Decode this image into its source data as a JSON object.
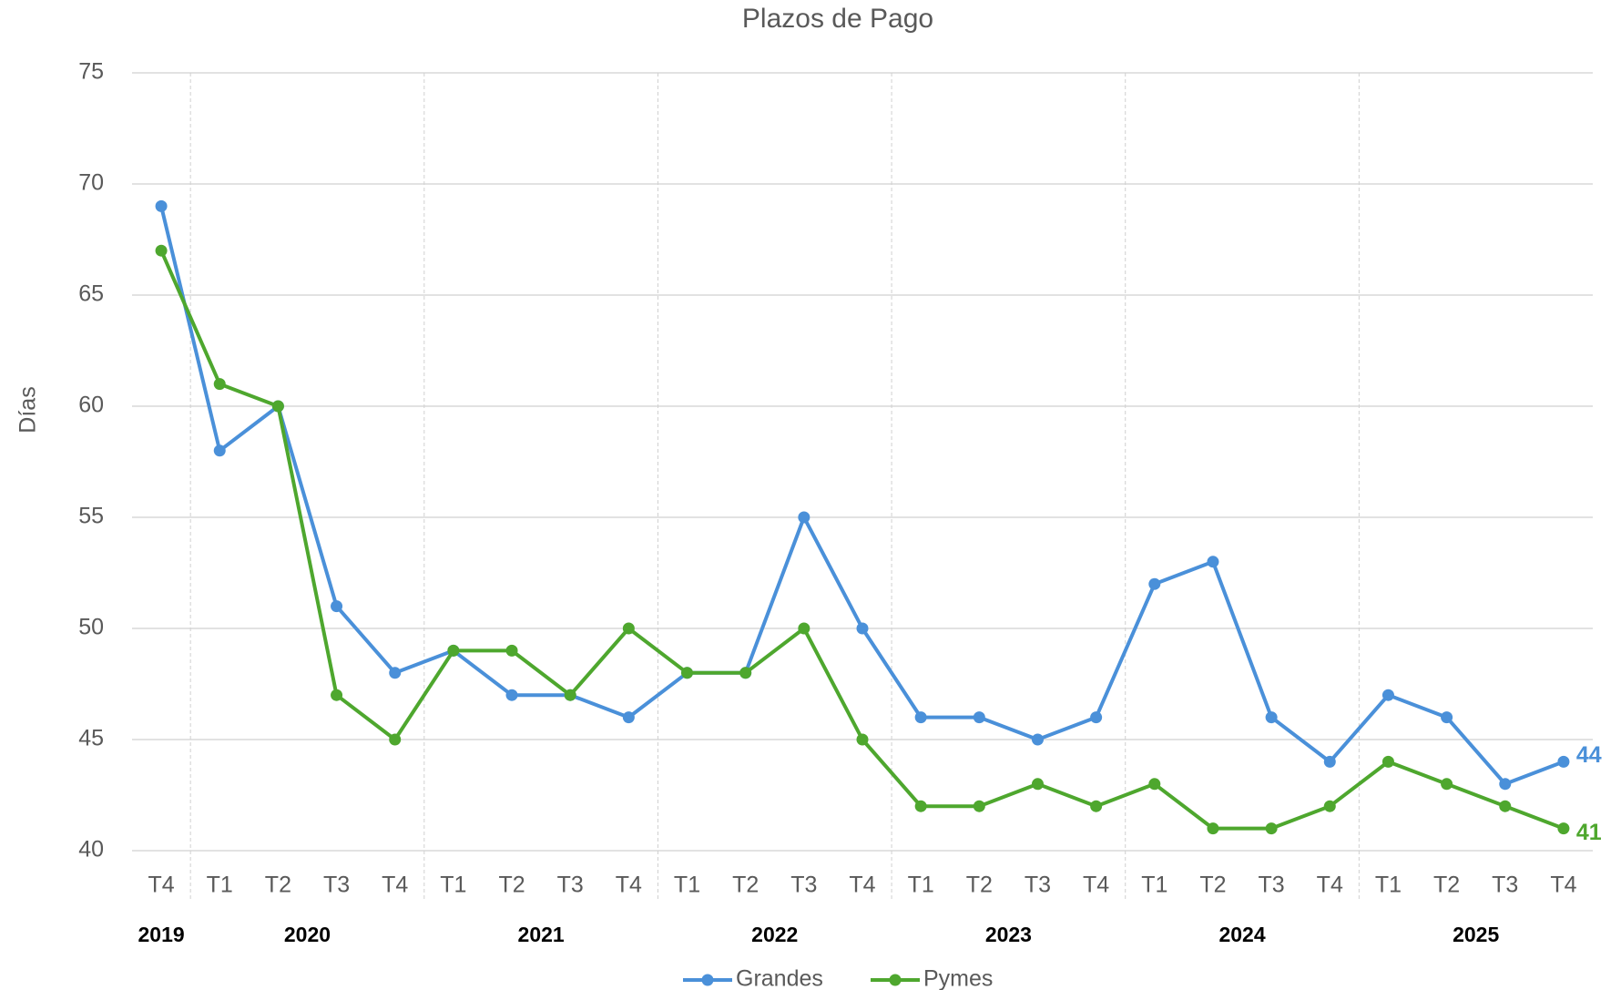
{
  "chart_data": {
    "type": "line",
    "title": "Plazos de Pago",
    "y_label": "Días",
    "categories": [
      "T4",
      "T1",
      "T2",
      "T3",
      "T4",
      "T1",
      "T2",
      "T3",
      "T4",
      "T1",
      "T2",
      "T3",
      "T4",
      "T1",
      "T2",
      "T3",
      "T4",
      "T1",
      "T2",
      "T3",
      "T4",
      "T1",
      "T2",
      "T3",
      "T4"
    ],
    "category_groups": [
      {
        "label": "2019",
        "start": 0,
        "end": 0
      },
      {
        "label": "2020",
        "start": 1,
        "end": 4
      },
      {
        "label": "2021",
        "start": 5,
        "end": 8
      },
      {
        "label": "2022",
        "start": 9,
        "end": 12
      },
      {
        "label": "2023",
        "start": 13,
        "end": 16
      },
      {
        "label": "2024",
        "start": 17,
        "end": 20
      },
      {
        "label": "2025",
        "start": 21,
        "end": 24
      }
    ],
    "series": [
      {
        "name": "Grandes",
        "color": "#4a90d9",
        "values": [
          69,
          58,
          60,
          51,
          48,
          49,
          47,
          47,
          46,
          48,
          48,
          55,
          50,
          46,
          46,
          45,
          46,
          52,
          53,
          46,
          44,
          47,
          46,
          43,
          44
        ]
      },
      {
        "name": "Pymes",
        "color": "#4ea72e",
        "values": [
          67,
          61,
          60,
          47,
          45,
          49,
          49,
          47,
          50,
          48,
          48,
          50,
          45,
          42,
          42,
          43,
          42,
          43,
          41,
          41,
          42,
          44,
          43,
          42,
          41
        ]
      }
    ],
    "ylim": [
      40,
      75
    ],
    "yticks": [
      40,
      45,
      50,
      55,
      60,
      65,
      70,
      75
    ],
    "grid": true,
    "legend": "bottom"
  }
}
